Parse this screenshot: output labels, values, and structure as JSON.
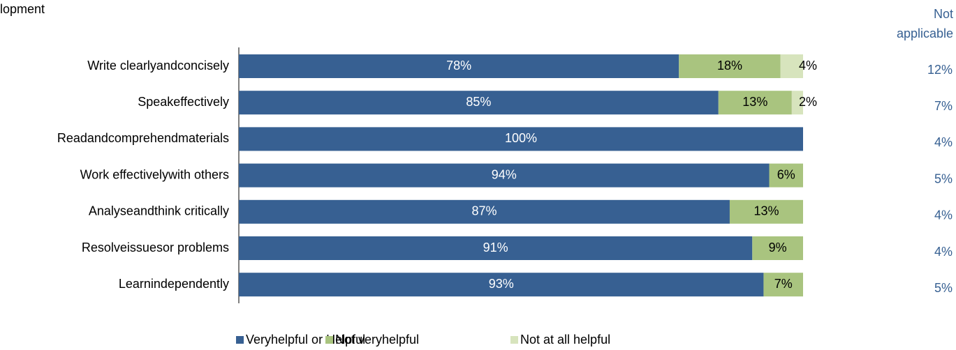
{
  "chart_data": {
    "type": "stacked_bar_horizontal",
    "title": "lopment",
    "categories": [
      "Write clearlyandconcisely",
      "Speakeffectively",
      "Readandcomprehendmaterials",
      "Work effectivelywith others",
      "Analyseandthink critically",
      "Resolveissuesor problems",
      "Learnindependently"
    ],
    "series": [
      {
        "name": "Veryhelpful or Helpful",
        "color": "#376092",
        "label_color": "#ffffff",
        "values": [
          78,
          85,
          100,
          94,
          87,
          91,
          93
        ],
        "value_labels": [
          "78%",
          "85%",
          "100%",
          "94%",
          "87%",
          "91%",
          "93%"
        ]
      },
      {
        "name": "Not veryhelpful",
        "color": "#a9c47f",
        "label_color": "#000000",
        "values": [
          18,
          13,
          0,
          6,
          13,
          9,
          7
        ],
        "value_labels": [
          "18%",
          "13%",
          null,
          "6%",
          "13%",
          "9%",
          "7%"
        ]
      },
      {
        "name": "Not at all helpful",
        "color": "#d7e4bd",
        "label_color": "#000000",
        "values": [
          4,
          2,
          0,
          0,
          0,
          0,
          0
        ],
        "value_labels": [
          "4%",
          "2%",
          null,
          null,
          null,
          null,
          null
        ]
      }
    ],
    "xlim": [
      0,
      100
    ],
    "not_applicable": {
      "label": "Not applicable",
      "color": "#376092",
      "values": [
        12,
        7,
        4,
        5,
        4,
        4,
        5
      ],
      "value_labels": [
        "12%",
        "7%",
        "4%",
        "5%",
        "4%",
        "4%",
        "5%"
      ]
    },
    "legend": "bottom"
  }
}
